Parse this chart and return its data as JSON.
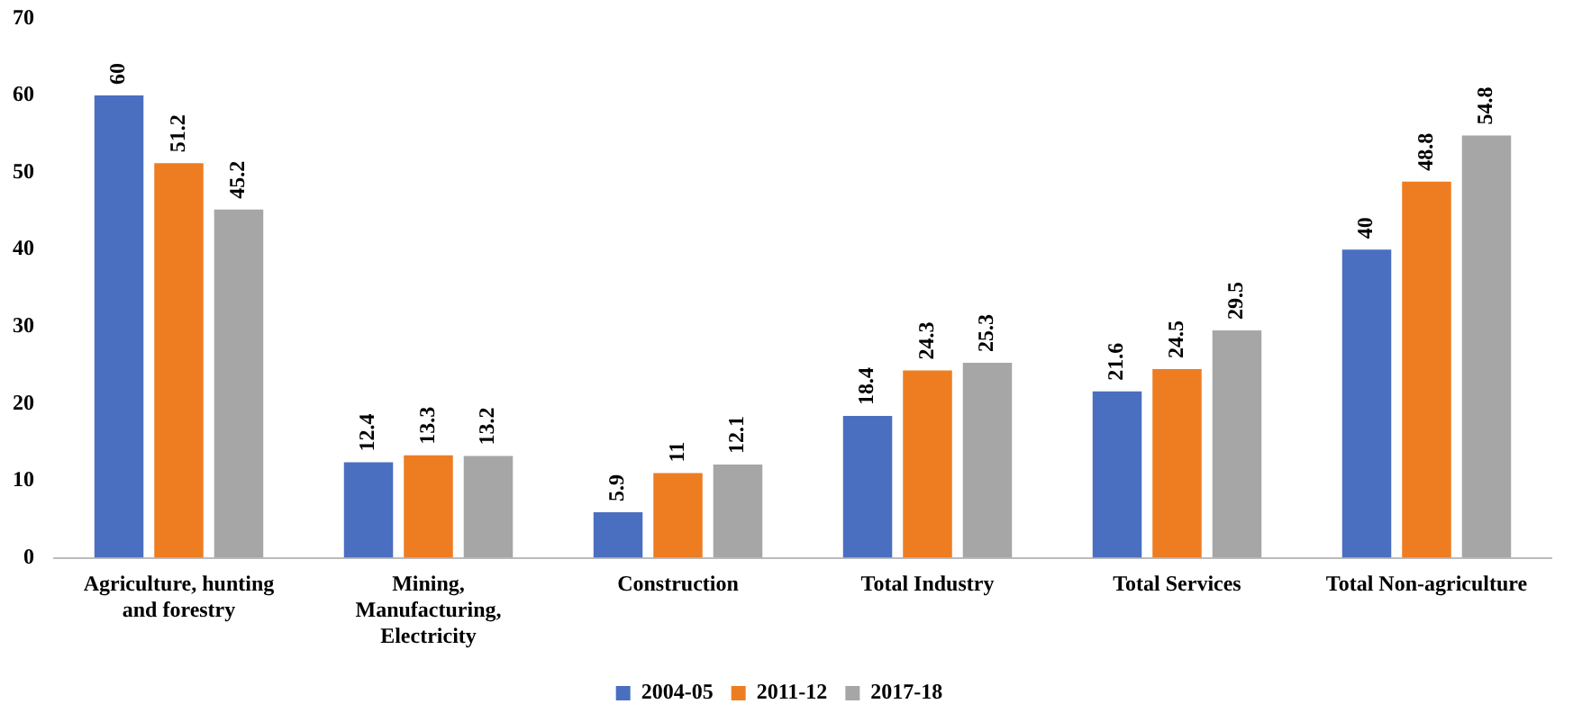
{
  "chart_data": {
    "type": "bar",
    "categories": [
      "Agriculture, hunting and forestry",
      "Mining, Manufacturing, Electricity",
      "Construction",
      "Total Industry",
      "Total Services",
      "Total Non-agriculture"
    ],
    "series": [
      {
        "name": "2004-05",
        "color": "#4a6fc0",
        "values": [
          60,
          12.4,
          5.9,
          18.4,
          21.6,
          40
        ]
      },
      {
        "name": "2011-12",
        "color": "#ee7d22",
        "values": [
          51.2,
          13.3,
          11,
          24.3,
          24.5,
          48.8
        ]
      },
      {
        "name": "2017-18",
        "color": "#a6a6a6",
        "values": [
          45.2,
          13.2,
          12.1,
          25.3,
          29.5,
          54.8
        ]
      }
    ],
    "ylim": [
      0,
      70
    ],
    "yticks": [
      0,
      10,
      20,
      30,
      40,
      50,
      60,
      70
    ],
    "grid": false,
    "legend": "bottom",
    "data_labels": true
  }
}
